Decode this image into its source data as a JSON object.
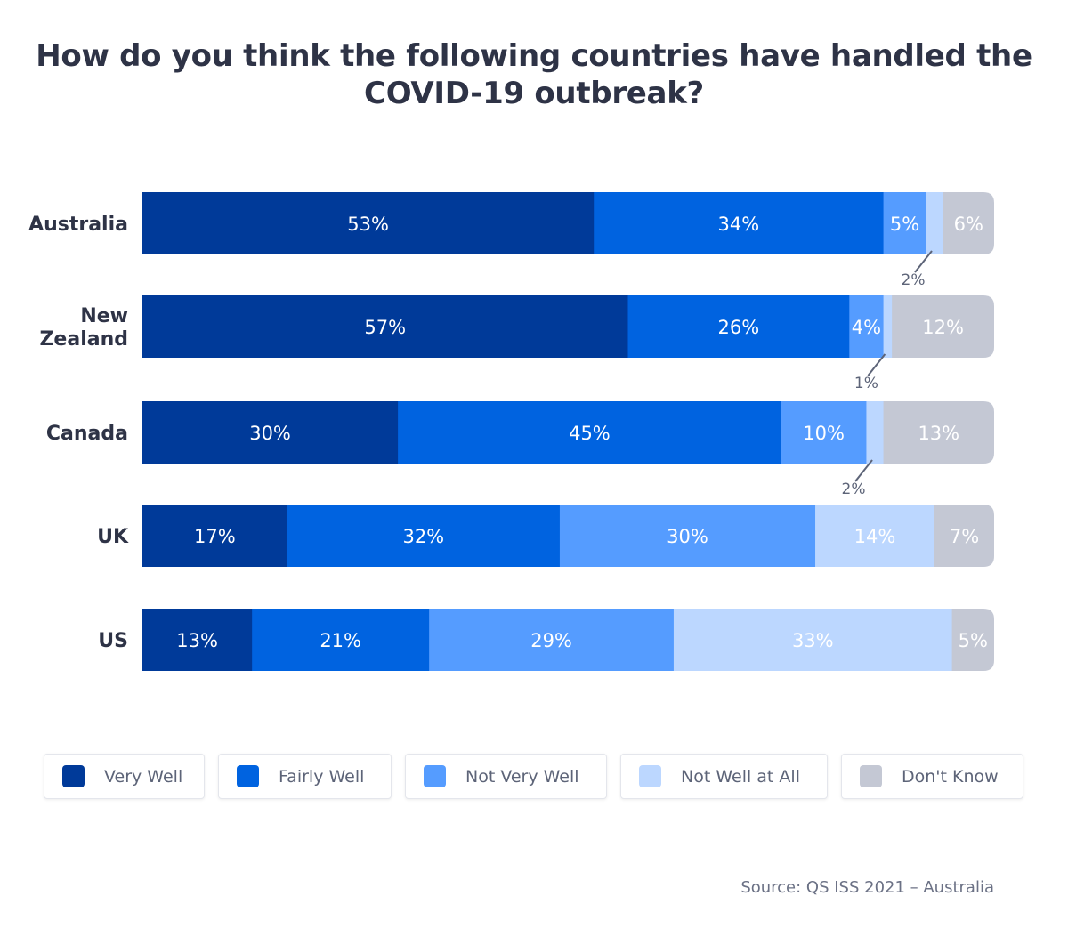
{
  "chart_data": {
    "type": "bar",
    "orientation": "horizontal",
    "stacked": true,
    "title": "How do you think the following countries have handled the COVID-19 outbreak?",
    "categories": [
      "Australia",
      "New Zealand",
      "Canada",
      "UK",
      "US"
    ],
    "category_lines": [
      [
        "Australia"
      ],
      [
        "New",
        "Zealand"
      ],
      [
        "Canada"
      ],
      [
        "UK"
      ],
      [
        "US"
      ]
    ],
    "unit": "%",
    "series": [
      {
        "name": "Very Well",
        "color": "#003a99",
        "values": [
          53,
          57,
          30,
          17,
          13
        ]
      },
      {
        "name": "Fairly Well",
        "color": "#0063e0",
        "values": [
          34,
          26,
          45,
          32,
          21
        ]
      },
      {
        "name": "Not Very Well",
        "color": "#559cff",
        "values": [
          5,
          4,
          10,
          30,
          29
        ]
      },
      {
        "name": "Not Well at All",
        "color": "#bcd7ff",
        "values": [
          2,
          1,
          2,
          14,
          33
        ]
      },
      {
        "name": "Don't Know",
        "color": "#c4c8d4",
        "values": [
          6,
          12,
          13,
          7,
          5
        ]
      }
    ],
    "legend_position": "bottom",
    "grid": false
  },
  "source": "Source: QS ISS 2021 – Australia"
}
